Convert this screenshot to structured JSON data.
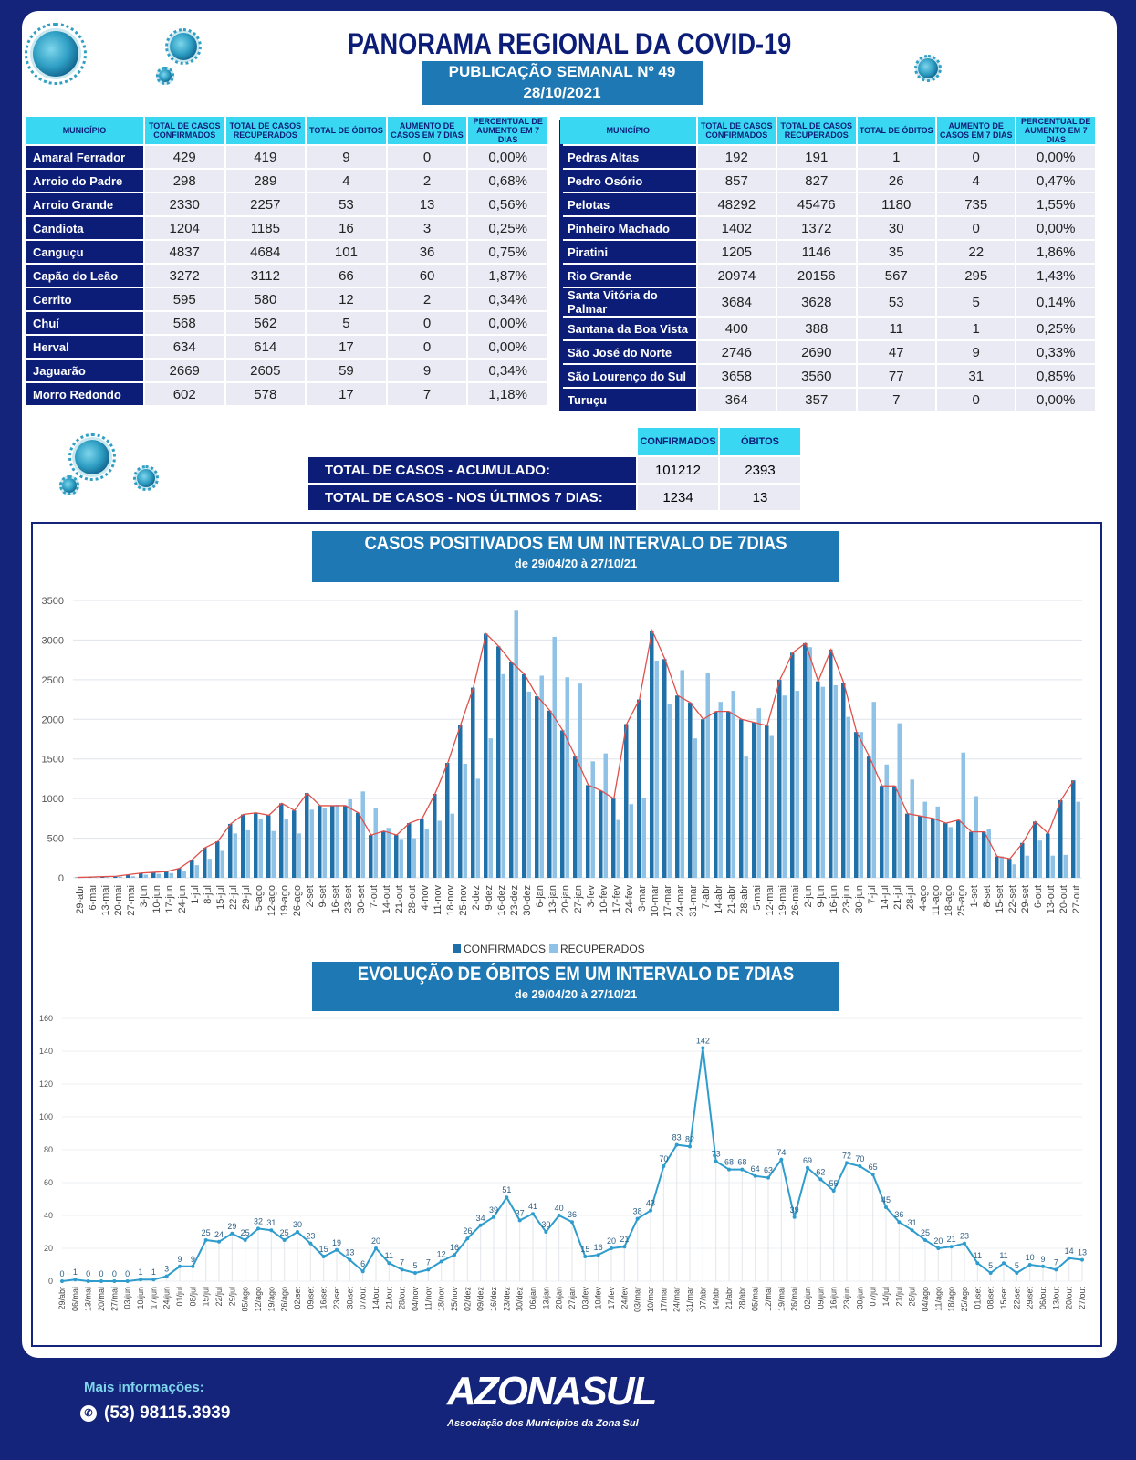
{
  "header": {
    "title": "PANORAMA REGIONAL DA COVID-19",
    "publication": "PUBLICAÇÃO SEMANAL Nº 49",
    "date": "28/10/2021"
  },
  "table_headers": [
    "MUNICÍPIO",
    "TOTAL DE CASOS CONFIRMADOS",
    "TOTAL DE CASOS RECUPERADOS",
    "TOTAL DE ÓBITOS",
    "AUMENTO DE CASOS EM 7 DIAS",
    "PERCENTUAL DE AUMENTO EM 7 DIAS"
  ],
  "left_rows": [
    [
      "Amaral Ferrador",
      "429",
      "419",
      "9",
      "0",
      "0,00%"
    ],
    [
      "Arroio do Padre",
      "298",
      "289",
      "4",
      "2",
      "0,68%"
    ],
    [
      "Arroio Grande",
      "2330",
      "2257",
      "53",
      "13",
      "0,56%"
    ],
    [
      "Candiota",
      "1204",
      "1185",
      "16",
      "3",
      "0,25%"
    ],
    [
      "Canguçu",
      "4837",
      "4684",
      "101",
      "36",
      "0,75%"
    ],
    [
      "Capão do Leão",
      "3272",
      "3112",
      "66",
      "60",
      "1,87%"
    ],
    [
      "Cerrito",
      "595",
      "580",
      "12",
      "2",
      "0,34%"
    ],
    [
      "Chuí",
      "568",
      "562",
      "5",
      "0",
      "0,00%"
    ],
    [
      "Herval",
      "634",
      "614",
      "17",
      "0",
      "0,00%"
    ],
    [
      "Jaguarão",
      "2669",
      "2605",
      "59",
      "9",
      "0,34%"
    ],
    [
      "Morro Redondo",
      "602",
      "578",
      "17",
      "7",
      "1,18%"
    ]
  ],
  "right_rows": [
    [
      "Pedras Altas",
      "192",
      "191",
      "1",
      "0",
      "0,00%"
    ],
    [
      "Pedro Osório",
      "857",
      "827",
      "26",
      "4",
      "0,47%"
    ],
    [
      "Pelotas",
      "48292",
      "45476",
      "1180",
      "735",
      "1,55%"
    ],
    [
      "Pinheiro Machado",
      "1402",
      "1372",
      "30",
      "0",
      "0,00%"
    ],
    [
      "Piratini",
      "1205",
      "1146",
      "35",
      "22",
      "1,86%"
    ],
    [
      "Rio Grande",
      "20974",
      "20156",
      "567",
      "295",
      "1,43%"
    ],
    [
      "Santa Vitória do Palmar",
      "3684",
      "3628",
      "53",
      "5",
      "0,14%"
    ],
    [
      "Santana da Boa Vista",
      "400",
      "388",
      "11",
      "1",
      "0,25%"
    ],
    [
      "São José do Norte",
      "2746",
      "2690",
      "47",
      "9",
      "0,33%"
    ],
    [
      "São Lourenço do Sul",
      "3658",
      "3560",
      "77",
      "31",
      "0,85%"
    ],
    [
      "Turuçu",
      "364",
      "357",
      "7",
      "0",
      "0,00%"
    ]
  ],
  "totals": {
    "col_confirmados": "CONFIRMADOS",
    "col_obitos": "ÓBITOS",
    "acumulado_label": "TOTAL DE CASOS  - ACUMULADO:",
    "acumulado_conf": "101212",
    "acumulado_obitos": "2393",
    "semana_label": "TOTAL DE CASOS  - NOS ÚLTIMOS 7 DIAS:",
    "semana_conf": "1234",
    "semana_obitos": "13"
  },
  "chart_data": [
    {
      "type": "bar",
      "title": "CASOS POSITIVADOS EM UM INTERVALO DE 7DIAS",
      "subtitle": "de 29/04/20 à 27/10/21",
      "ylim": [
        0,
        3500
      ],
      "yticks": [
        0,
        500,
        1000,
        1500,
        2000,
        2500,
        3000,
        3500
      ],
      "grid": true,
      "legend": "bottom",
      "categories": [
        "29-abr",
        "6-mai",
        "13-mai",
        "20-mai",
        "27-mai",
        "3-jun",
        "10-jun",
        "17-jun",
        "24-jun",
        "1-jul",
        "8-jul",
        "15-jul",
        "22-jul",
        "29-jul",
        "5-ago",
        "12-ago",
        "19-ago",
        "26-ago",
        "2-set",
        "9-set",
        "16-set",
        "23-set",
        "30-set",
        "7-out",
        "14-out",
        "21-out",
        "28-out",
        "4-nov",
        "11-nov",
        "18-nov",
        "25-nov",
        "2-dez",
        "9-dez",
        "16-dez",
        "23-dez",
        "30-dez",
        "6-jan",
        "13-jan",
        "20-jan",
        "27-jan",
        "3-fev",
        "10-fev",
        "17-fev",
        "24-fev",
        "3-mar",
        "10-mar",
        "17-mar",
        "24-mar",
        "31-mar",
        "7-abr",
        "14-abr",
        "21-abr",
        "28-abr",
        "5-mai",
        "12-mai",
        "19-mai",
        "26-mai",
        "2-jun",
        "9-jun",
        "16-jun",
        "23-jun",
        "30-jun",
        "7-jul",
        "14-jul",
        "21-jul",
        "28-jul",
        "4-ago",
        "11-ago",
        "18-ago",
        "25-ago",
        "1-set",
        "8-set",
        "15-set",
        "22-set",
        "29-set",
        "6-out",
        "13-out",
        "20-out",
        "27-out"
      ],
      "series": [
        {
          "name": "CONFIRMADOS",
          "color": "#1f6fa8",
          "values": [
            5,
            10,
            15,
            20,
            40,
            60,
            70,
            80,
            120,
            230,
            380,
            460,
            680,
            800,
            820,
            790,
            940,
            850,
            1070,
            910,
            910,
            910,
            820,
            540,
            590,
            540,
            690,
            750,
            1060,
            1450,
            1930,
            2400,
            3080,
            2920,
            2720,
            2570,
            2290,
            2110,
            1860,
            1530,
            1170,
            1100,
            1000,
            1940,
            2250,
            3120,
            2760,
            2300,
            2210,
            2000,
            2100,
            2100,
            2000,
            1960,
            1920,
            2500,
            2840,
            2960,
            2480,
            2880,
            2460,
            1840,
            1530,
            1160,
            1160,
            810,
            780,
            750,
            690,
            730,
            580,
            580,
            270,
            240,
            440,
            710,
            560,
            980,
            1230
          ]
        },
        {
          "name": "RECUPERADOS",
          "color": "#8ec2e6",
          "values": [
            0,
            5,
            10,
            15,
            20,
            40,
            50,
            60,
            80,
            160,
            240,
            340,
            560,
            600,
            740,
            590,
            740,
            560,
            860,
            880,
            920,
            990,
            1090,
            880,
            630,
            490,
            500,
            620,
            720,
            810,
            1440,
            1250,
            1760,
            2570,
            3370,
            2350,
            2550,
            3040,
            2530,
            2450,
            1470,
            1570,
            730,
            930,
            1010,
            2740,
            2190,
            2620,
            1760,
            2580,
            2220,
            2360,
            1530,
            2140,
            1790,
            2300,
            2360,
            2910,
            2410,
            2430,
            2030,
            1840,
            2220,
            1430,
            1950,
            1240,
            960,
            900,
            640,
            1580,
            1030,
            610,
            270,
            170,
            280,
            470,
            280,
            290,
            960
          ]
        }
      ]
    },
    {
      "type": "line",
      "title": "EVOLUÇÃO DE ÓBITOS EM UM INTERVALO DE 7DIAS",
      "subtitle": "de 29/04/20 à 27/10/21",
      "ylim": [
        0,
        160
      ],
      "yticks": [
        0,
        20,
        40,
        60,
        80,
        100,
        120,
        140,
        160
      ],
      "grid": true,
      "categories": [
        "29/abr",
        "06/mai",
        "13/mai",
        "20/mai",
        "27/mai",
        "03/jun",
        "10/jun",
        "17/jun",
        "24/jun",
        "01/jul",
        "08/jul",
        "15/jul",
        "22/jul",
        "29/jul",
        "05/ago",
        "12/ago",
        "19/ago",
        "26/ago",
        "02/set",
        "09/set",
        "16/set",
        "23/set",
        "30/set",
        "07/out",
        "14/out",
        "21/out",
        "28/out",
        "04/nov",
        "11/nov",
        "18/nov",
        "25/nov",
        "02/dez",
        "09/dez",
        "16/dez",
        "23/dez",
        "30/dez",
        "06/jan",
        "13/jan",
        "20/jan",
        "27/jan",
        "03/fev",
        "10/fev",
        "17/fev",
        "24/fev",
        "03/mar",
        "10/mar",
        "17/mar",
        "24/mar",
        "31/mar",
        "07/abr",
        "14/abr",
        "21/abr",
        "28/abr",
        "05/mai",
        "12/mai",
        "19/mai",
        "26/mai",
        "02/jun",
        "09/jun",
        "16/jun",
        "23/jun",
        "30/jun",
        "07/jul",
        "14/jul",
        "21/jul",
        "28/jul",
        "04/ago",
        "11/ago",
        "18/ago",
        "25/ago",
        "01/set",
        "08/set",
        "15/set",
        "22/set",
        "29/set",
        "06/out",
        "13/out",
        "20/out",
        "27/out"
      ],
      "series": [
        {
          "name": "ÓBITOS",
          "color": "#2e9ccc",
          "values": [
            0,
            1,
            0,
            0,
            0,
            0,
            1,
            1,
            3,
            9,
            9,
            25,
            24,
            29,
            25,
            32,
            31,
            25,
            30,
            23,
            15,
            19,
            13,
            6,
            20,
            11,
            7,
            5,
            7,
            12,
            16,
            26,
            34,
            39,
            51,
            37,
            41,
            30,
            40,
            36,
            15,
            16,
            20,
            21,
            38,
            43,
            70,
            83,
            82,
            142,
            73,
            68,
            68,
            64,
            63,
            74,
            39,
            69,
            62,
            55,
            72,
            70,
            65,
            45,
            36,
            31,
            25,
            20,
            21,
            23,
            11,
            5,
            11,
            5,
            10,
            9,
            7,
            14,
            13
          ]
        }
      ]
    }
  ],
  "legend": {
    "confirmados": "CONFIRMADOS",
    "recuperados": "RECUPERADOS"
  },
  "footer": {
    "info": "Mais informações:",
    "phone": "(53) 98115.3939",
    "logo_text": "AZONASUL",
    "logo_sub": "Associação dos Municípios da Zona Sul"
  }
}
